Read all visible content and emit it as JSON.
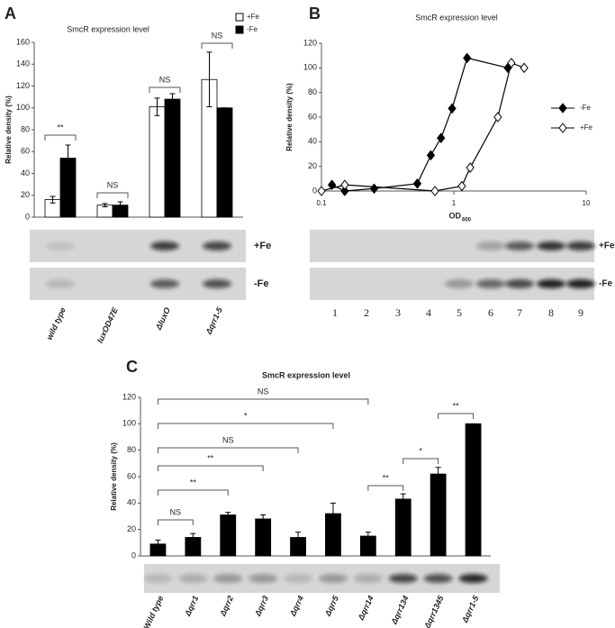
{
  "chart_data": [
    {
      "type": "bar",
      "panel": "A",
      "title": "SmcR expression level",
      "ylabel": "Relative density (%)",
      "categories": [
        "wild type",
        "luxOD47E",
        "ΔluxO",
        "Δqrr1-5"
      ],
      "series": [
        {
          "name": "+Fe",
          "color": "#ffffff",
          "values": [
            16,
            11,
            101,
            126
          ],
          "errors": [
            3,
            1.5,
            8,
            25
          ]
        },
        {
          "name": "-Fe",
          "color": "#000000",
          "values": [
            54,
            11,
            108,
            100
          ],
          "errors": [
            12,
            3,
            5,
            0
          ]
        }
      ],
      "ylim": [
        0,
        160
      ],
      "yticks": [
        0,
        20,
        40,
        60,
        80,
        100,
        120,
        140,
        160
      ],
      "legend": "upper right",
      "annotations": [
        "**",
        "NS",
        "NS",
        "NS"
      ],
      "blot_labels": [
        "+Fe",
        "-Fe"
      ]
    },
    {
      "type": "line",
      "panel": "B",
      "title": "SmcR expression level",
      "ylabel": "Relative density (%)",
      "xlabel": "OD",
      "xlabel_subscript": "600",
      "log_x": true,
      "xlim": [
        0.1,
        10
      ],
      "xticks": [
        0.1,
        1,
        10
      ],
      "ylim": [
        0,
        120
      ],
      "yticks": [
        0,
        20,
        40,
        60,
        80,
        100,
        120
      ],
      "legend": "right",
      "series": [
        {
          "name": "-Fe",
          "color": "#000000",
          "marker_fill": "#000000",
          "x": [
            0.12,
            0.15,
            0.25,
            0.53,
            0.67,
            0.8,
            0.97,
            1.26,
            2.56
          ],
          "values": [
            5,
            0,
            2,
            6,
            29,
            43,
            67,
            108,
            100
          ]
        },
        {
          "name": "+Fe",
          "color": "#000000",
          "marker_fill": "#ffffff",
          "x": [
            0.1,
            0.15,
            0.72,
            1.15,
            1.33,
            2.15,
            2.72,
            3.4
          ],
          "values": [
            0,
            5,
            0,
            4,
            19,
            60,
            104,
            100
          ]
        }
      ],
      "lane_labels": [
        "1",
        "2",
        "3",
        "4",
        "5",
        "6",
        "7",
        "8",
        "9"
      ],
      "blot_labels": [
        "+Fe",
        "-Fe"
      ]
    },
    {
      "type": "bar",
      "panel": "C",
      "title": "SmcR expression level",
      "ylabel": "Relative density (%)",
      "categories": [
        "Wild type",
        "Δqrr1",
        "Δqrr2",
        "Δqrr3",
        "Δqrr4",
        "Δqrr5",
        "Δqrr14",
        "Δqrr134",
        "Δqrr1345",
        "Δqrr1-5"
      ],
      "values": [
        9,
        14,
        31,
        28,
        14,
        32,
        15,
        43,
        62,
        100
      ],
      "errors": [
        3,
        3,
        2,
        3,
        4,
        8,
        3,
        4,
        5,
        0
      ],
      "color": "#000000",
      "ylim": [
        0,
        120
      ],
      "yticks": [
        0,
        20,
        40,
        60,
        80,
        100,
        120
      ],
      "annotations": [
        "NS",
        "**",
        "**",
        "NS",
        "*",
        "NS",
        "**",
        "*",
        "**"
      ]
    }
  ]
}
